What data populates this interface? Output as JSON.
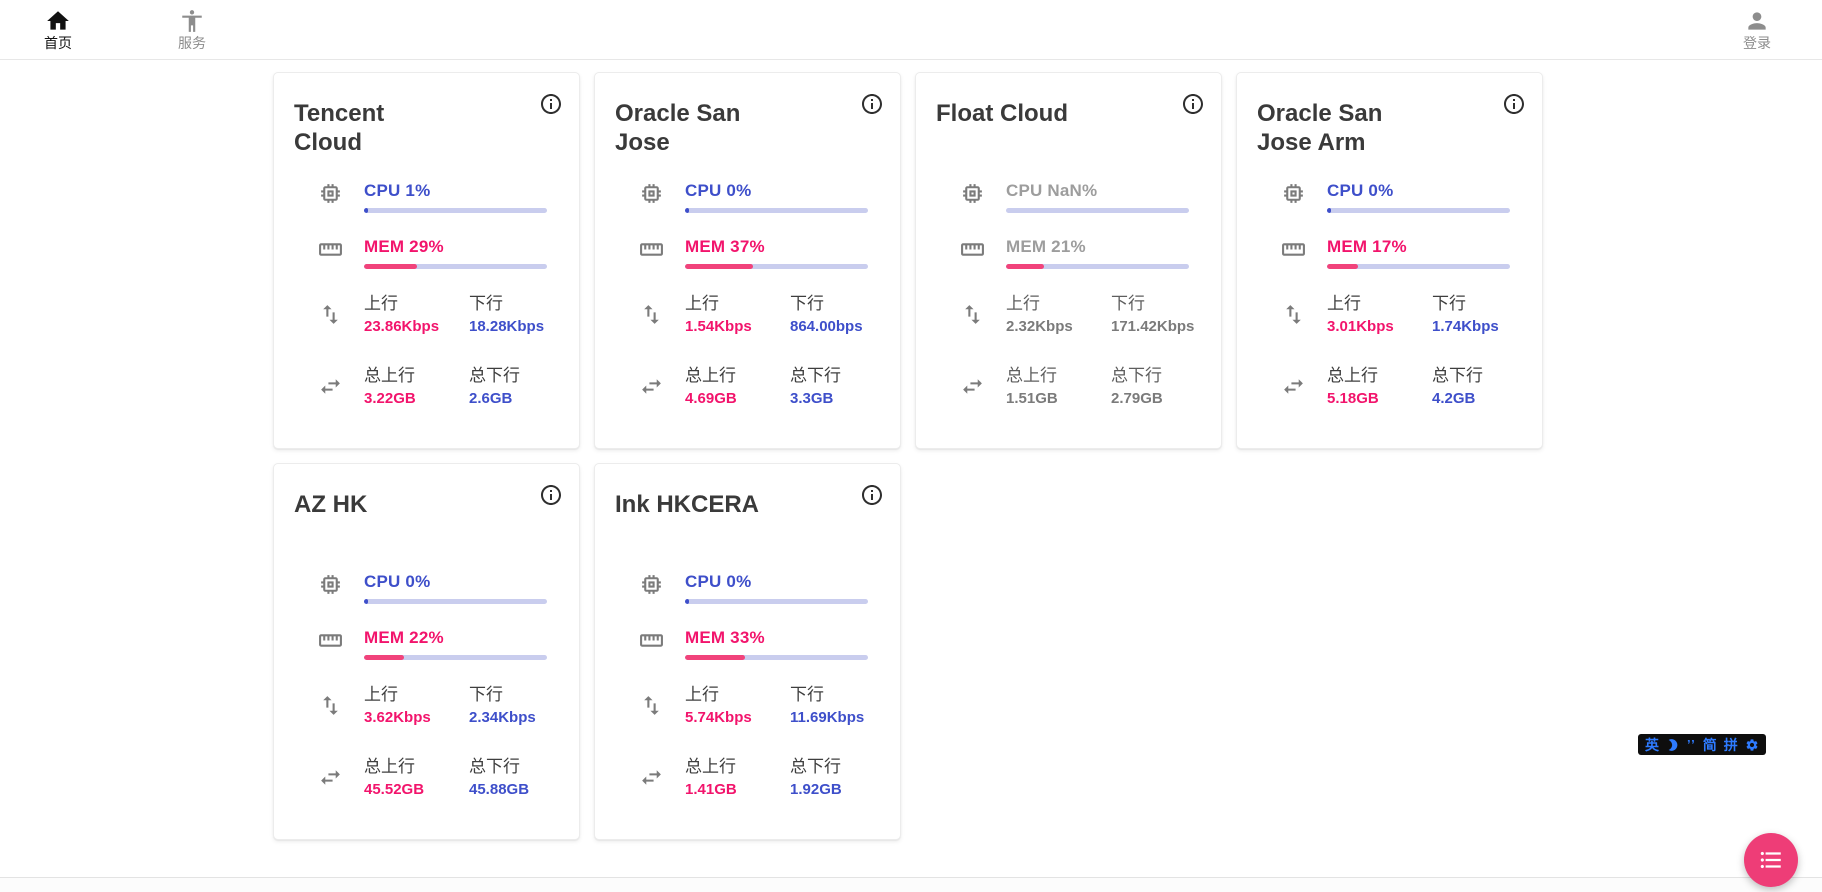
{
  "nav": {
    "home": {
      "label": "首页"
    },
    "services": {
      "label": "服务"
    },
    "login": {
      "label": "登录"
    }
  },
  "labels": {
    "up": "上行",
    "down": "下行",
    "total_up": "总上行",
    "total_down": "总下行"
  },
  "cards": [
    {
      "title": "Tencent Cloud",
      "cpu_text": "CPU 1%",
      "cpu_pct": 1,
      "mem_text": "MEM 29%",
      "mem_pct": 29,
      "up": "23.86Kbps",
      "down": "18.28Kbps",
      "total_up": "3.22GB",
      "total_down": "2.6GB",
      "muted": false
    },
    {
      "title": "Oracle San Jose",
      "cpu_text": "CPU 0%",
      "cpu_pct": 0,
      "mem_text": "MEM 37%",
      "mem_pct": 37,
      "up": "1.54Kbps",
      "down": "864.00bps",
      "total_up": "4.69GB",
      "total_down": "3.3GB",
      "muted": false
    },
    {
      "title": "Float Cloud",
      "cpu_text": "CPU NaN%",
      "cpu_pct": null,
      "mem_text": "MEM 21%",
      "mem_pct": 21,
      "up": "2.32Kbps",
      "down": "171.42Kbps",
      "total_up": "1.51GB",
      "total_down": "2.79GB",
      "muted": true
    },
    {
      "title": "Oracle San Jose Arm",
      "cpu_text": "CPU 0%",
      "cpu_pct": 0,
      "mem_text": "MEM 17%",
      "mem_pct": 17,
      "up": "3.01Kbps",
      "down": "1.74Kbps",
      "total_up": "5.18GB",
      "total_down": "4.2GB",
      "muted": false
    },
    {
      "title": "AZ HK",
      "cpu_text": "CPU 0%",
      "cpu_pct": 0,
      "mem_text": "MEM 22%",
      "mem_pct": 22,
      "up": "3.62Kbps",
      "down": "2.34Kbps",
      "total_up": "45.52GB",
      "total_down": "45.88GB",
      "muted": false
    },
    {
      "title": "Ink HKCERA",
      "cpu_text": "CPU 0%",
      "cpu_pct": 0,
      "mem_text": "MEM 33%",
      "mem_pct": 33,
      "up": "5.74Kbps",
      "down": "11.69Kbps",
      "total_up": "1.41GB",
      "total_down": "1.92GB",
      "muted": false
    }
  ],
  "ime": {
    "english": "英",
    "punct": "’’",
    "simplified": "简",
    "pinyin": "拼"
  },
  "colors": {
    "blue": "#3e4fca",
    "blue_track": "#c9cdee",
    "pink": "#f2146c",
    "pink_bar": "#f1437b",
    "fab": "#ee3d77",
    "ime_blue": "#2e7bff"
  }
}
